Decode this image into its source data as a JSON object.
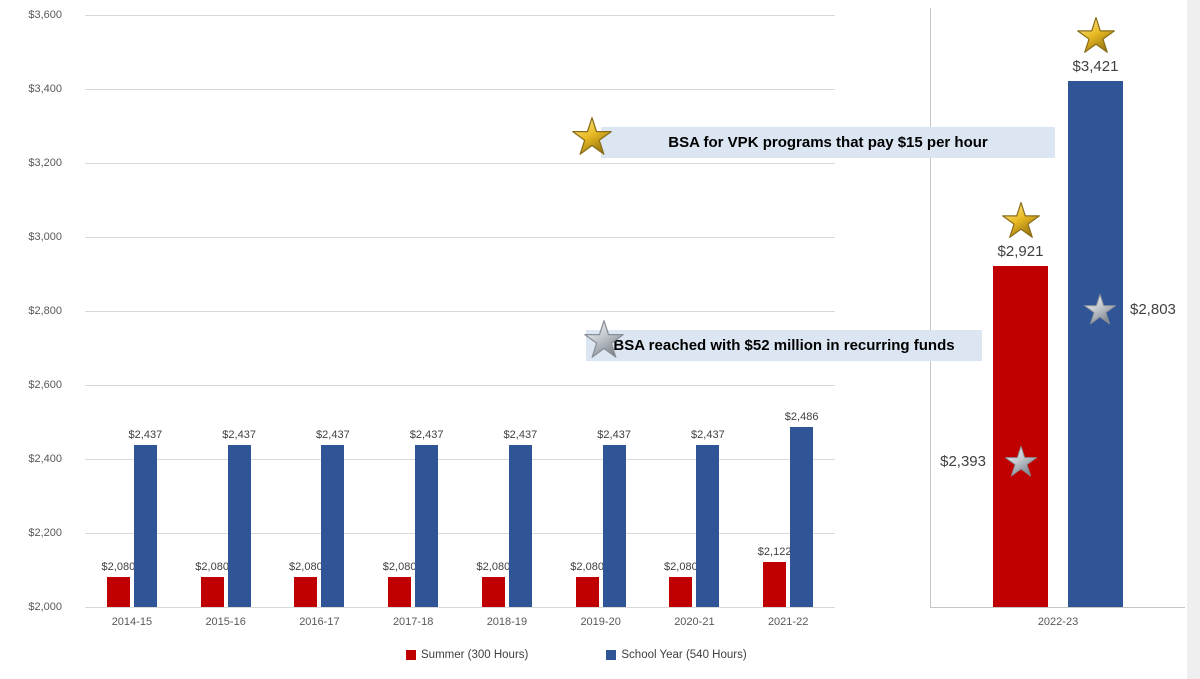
{
  "chart_data": {
    "type": "bar",
    "ylim": [
      2000,
      3600
    ],
    "ytick_step": 200,
    "grid": true,
    "legend_position": "bottom",
    "yticks": [
      {
        "value": 2000,
        "label": "$2,000"
      },
      {
        "value": 2200,
        "label": "$2,200"
      },
      {
        "value": 2400,
        "label": "$2,400"
      },
      {
        "value": 2600,
        "label": "$2,600"
      },
      {
        "value": 2800,
        "label": "$2,800"
      },
      {
        "value": 3000,
        "label": "$3,000"
      },
      {
        "value": 3200,
        "label": "$3,200"
      },
      {
        "value": 3400,
        "label": "$3,400"
      },
      {
        "value": 3600,
        "label": "$3,600"
      }
    ],
    "categories": [
      "2014-15",
      "2015-16",
      "2016-17",
      "2017-18",
      "2018-19",
      "2019-20",
      "2020-21",
      "2021-22"
    ],
    "series": [
      {
        "name": "Summer (300 Hours)",
        "slug": "summer",
        "color": "#C00000",
        "values": [
          2080,
          2080,
          2080,
          2080,
          2080,
          2080,
          2080,
          2122
        ],
        "labels": [
          "$2,080",
          "$2,080",
          "$2,080",
          "$2,080",
          "$2,080",
          "$2,080",
          "$2,080",
          "$2,122"
        ]
      },
      {
        "name": "School Year (540 Hours)",
        "slug": "school-year",
        "color": "#2F5597",
        "values": [
          2437,
          2437,
          2437,
          2437,
          2437,
          2437,
          2437,
          2486
        ],
        "labels": [
          "$2,437",
          "$2,437",
          "$2,437",
          "$2,437",
          "$2,437",
          "$2,437",
          "$2,437",
          "$2,486"
        ]
      }
    ],
    "right_panel": {
      "category": "2022-23",
      "bars": [
        {
          "series": "Summer (300 Hours)",
          "slug": "summer",
          "color": "#C00000",
          "value": 2921,
          "label": "$2,921",
          "top_star": "gold"
        },
        {
          "series": "School Year (540 Hours)",
          "slug": "school-year",
          "color": "#2F5597",
          "value": 3421,
          "label": "$3,421",
          "top_star": "gold"
        }
      ],
      "markers": [
        {
          "star": "silver",
          "value": 2393,
          "label": "$2,393",
          "label_side": "left",
          "bar_index": 0
        },
        {
          "star": "silver",
          "value": 2803,
          "label": "$2,803",
          "label_side": "right",
          "bar_index": 1
        }
      ]
    },
    "annotations": [
      {
        "star": "gold",
        "text": "BSA for VPK programs that pay $15 per hour",
        "approx_value": 3255
      },
      {
        "star": "silver",
        "text": "BSA reached with $52 million in recurring funds",
        "approx_value": 2710
      }
    ],
    "legend": [
      {
        "label": "Summer (300 Hours)",
        "slug": "summer",
        "color": "#C00000"
      },
      {
        "label": "School Year (540 Hours)",
        "slug": "school-year",
        "color": "#2F5597"
      }
    ],
    "colors": {
      "grid": "#D9D9D9",
      "axis_line": "#C6C6C6",
      "axis_text": "#595959",
      "bar_label": "#404040",
      "banner_bg": "#DCE6F2",
      "gold_star": "#E8B923",
      "silver_star": "#C0C0C0"
    }
  }
}
